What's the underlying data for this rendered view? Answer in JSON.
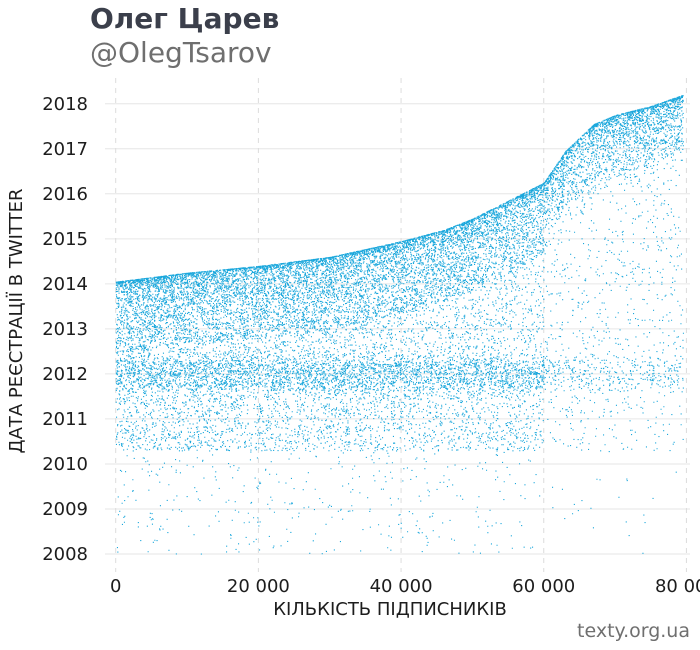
{
  "header": {
    "title": "Олег Царев",
    "subtitle": "@OlegTsarov"
  },
  "footer": {
    "source": "texty.org.ua"
  },
  "chart_data": {
    "type": "scatter",
    "xlabel": "КІЛЬКІСТЬ ПІДПИСНИКІВ",
    "ylabel": "ДАТА РЕЄСТРАЦІЇ В TWITTER",
    "xlim": [
      -1500,
      80500
    ],
    "ylim": [
      2007.6,
      2018.35
    ],
    "x_ticks": [
      0,
      20000,
      40000,
      60000,
      80000
    ],
    "x_tick_labels": [
      "0",
      "20 000",
      "40 000",
      "60 000",
      "80 000"
    ],
    "y_ticks": [
      2008,
      2009,
      2010,
      2011,
      2012,
      2013,
      2014,
      2015,
      2016,
      2017,
      2018
    ],
    "y_tick_labels": [
      "2008",
      "2009",
      "2010",
      "2011",
      "2012",
      "2013",
      "2014",
      "2015",
      "2016",
      "2017",
      "2018"
    ],
    "grid": true,
    "point_color": "#1aa7dc",
    "series": [
      {
        "upper_envelope": [
          [
            0,
            2014.05
          ],
          [
            10000,
            2014.25
          ],
          [
            20000,
            2014.4
          ],
          [
            30000,
            2014.6
          ],
          [
            40000,
            2014.95
          ],
          [
            46000,
            2015.2
          ],
          [
            50000,
            2015.45
          ],
          [
            55000,
            2015.85
          ],
          [
            60000,
            2016.25
          ],
          [
            63000,
            2016.95
          ],
          [
            67000,
            2017.55
          ],
          [
            70000,
            2017.75
          ],
          [
            75000,
            2017.95
          ],
          [
            79500,
            2018.2
          ]
        ],
        "point_count_approx": 80000
      }
    ]
  }
}
